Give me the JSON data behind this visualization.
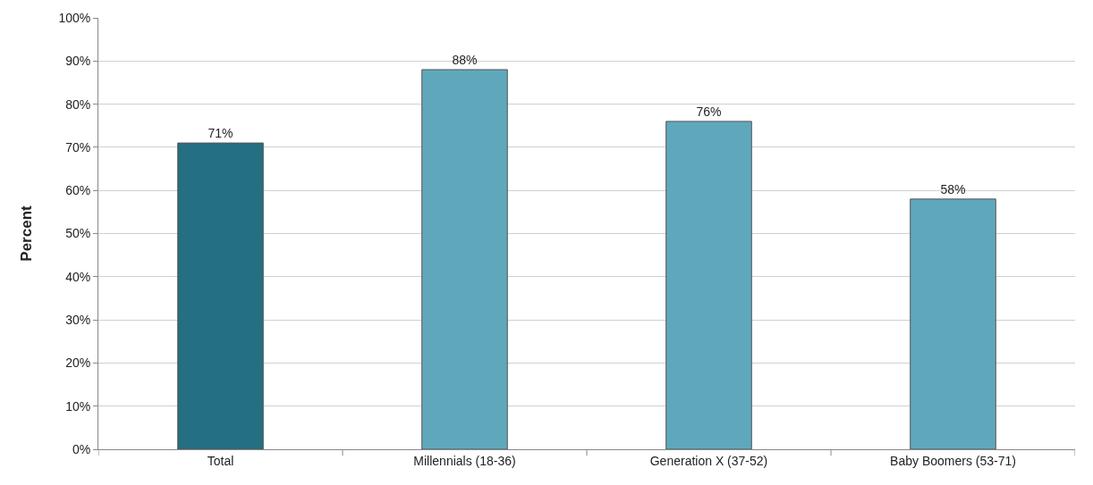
{
  "chart_data": {
    "type": "bar",
    "ylabel": "Percent",
    "categories": [
      "Total",
      "Millennials (18-36)",
      "Generation X (37-52)",
      "Baby Boomers (53-71)"
    ],
    "values": [
      71,
      88,
      76,
      58
    ],
    "value_labels": [
      "71%",
      "88%",
      "76%",
      "58%"
    ],
    "colors": [
      "#246f82",
      "#5fa8bc",
      "#5fa8bc",
      "#5fa8bc"
    ],
    "ylim": [
      0,
      100
    ],
    "yticks": [
      {
        "value": 0,
        "label": "0%"
      },
      {
        "value": 10,
        "label": "10%"
      },
      {
        "value": 20,
        "label": "20%"
      },
      {
        "value": 30,
        "label": "30%"
      },
      {
        "value": 40,
        "label": "40%"
      },
      {
        "value": 50,
        "label": "50%"
      },
      {
        "value": 60,
        "label": "60%"
      },
      {
        "value": 70,
        "label": "70%"
      },
      {
        "value": 80,
        "label": "80%"
      },
      {
        "value": 90,
        "label": "90%"
      },
      {
        "value": 100,
        "label": "100%"
      }
    ],
    "grid": "y"
  }
}
